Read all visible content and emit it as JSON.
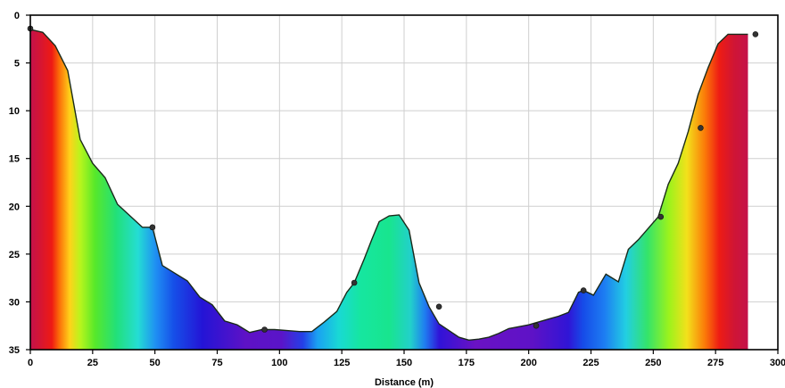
{
  "chart_data": {
    "type": "area",
    "title": "",
    "xlabel": "Distance (m)",
    "ylabel": "",
    "xlim": [
      0,
      300
    ],
    "ylim": [
      0,
      35
    ],
    "y_inverted": true,
    "grid": true,
    "x_ticks": [
      "0",
      "25",
      "50",
      "75",
      "100",
      "125",
      "150",
      "175",
      "200",
      "225",
      "250",
      "275",
      "300"
    ],
    "y_ticks": [
      "0",
      "5",
      "10",
      "15",
      "20",
      "25",
      "30",
      "35"
    ],
    "profile": {
      "x": [
        0,
        5,
        10,
        15,
        20,
        25,
        30,
        35,
        40,
        45,
        49,
        53,
        58,
        63,
        68,
        73,
        78,
        83,
        88,
        93,
        98,
        103,
        108,
        113,
        118,
        123,
        127,
        130,
        134,
        137,
        140,
        144,
        148,
        152,
        156,
        160,
        164,
        168,
        172,
        176,
        180,
        184,
        188,
        192,
        196,
        200,
        204,
        208,
        212,
        216,
        220,
        222,
        226,
        231,
        236,
        240,
        244,
        248,
        252,
        256,
        260,
        264,
        268,
        272,
        276,
        280,
        284,
        288
      ],
      "depth": [
        1.5,
        1.8,
        3.2,
        5.8,
        13.0,
        15.5,
        17.0,
        19.8,
        21.0,
        22.2,
        22.2,
        26.2,
        27.0,
        27.8,
        29.5,
        30.3,
        32.0,
        32.4,
        33.2,
        32.9,
        32.9,
        33.0,
        33.1,
        33.1,
        32.1,
        31.0,
        29.0,
        28.0,
        25.5,
        23.5,
        21.6,
        21.0,
        20.9,
        22.5,
        28.0,
        30.5,
        32.3,
        33.0,
        33.7,
        34.0,
        33.9,
        33.7,
        33.3,
        32.8,
        32.6,
        32.4,
        32.1,
        31.8,
        31.5,
        31.1,
        29.0,
        28.8,
        29.3,
        27.1,
        27.9,
        24.5,
        23.5,
        22.3,
        21.1,
        17.7,
        15.5,
        12.2,
        8.3,
        5.5,
        3.0,
        2.0,
        2.0,
        2.0
      ]
    },
    "markers": {
      "x": [
        0,
        49,
        94,
        130,
        164,
        203,
        222,
        253,
        269,
        291
      ],
      "depth": [
        1.4,
        22.2,
        32.9,
        28.0,
        30.5,
        32.5,
        28.8,
        21.1,
        11.8,
        2.0
      ]
    },
    "fill": "rainbow gradient by depth",
    "colors": {
      "outline": "#1a2a1a",
      "marker": "#333333",
      "grid": "#cfcfcf",
      "axis": "#000000"
    }
  }
}
